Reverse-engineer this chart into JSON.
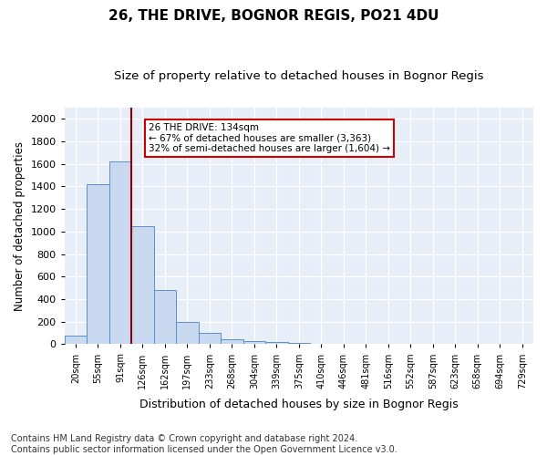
{
  "title1": "26, THE DRIVE, BOGNOR REGIS, PO21 4DU",
  "title2": "Size of property relative to detached houses in Bognor Regis",
  "xlabel": "Distribution of detached houses by size in Bognor Regis",
  "ylabel": "Number of detached properties",
  "categories": [
    "20sqm",
    "55sqm",
    "91sqm",
    "126sqm",
    "162sqm",
    "197sqm",
    "233sqm",
    "268sqm",
    "304sqm",
    "339sqm",
    "375sqm",
    "410sqm",
    "446sqm",
    "481sqm",
    "516sqm",
    "552sqm",
    "587sqm",
    "623sqm",
    "658sqm",
    "694sqm",
    "729sqm"
  ],
  "values": [
    75,
    1420,
    1620,
    1050,
    480,
    200,
    100,
    45,
    25,
    18,
    15,
    0,
    0,
    0,
    0,
    0,
    0,
    0,
    0,
    0,
    0
  ],
  "bar_color": "#c8d8ee",
  "bar_edge_color": "#5b8fc9",
  "vline_color": "#8b0000",
  "annotation_text": "26 THE DRIVE: 134sqm\n← 67% of detached houses are smaller (3,363)\n32% of semi-detached houses are larger (1,604) →",
  "annotation_box_color": "white",
  "annotation_box_edge_color": "#cc0000",
  "ylim": [
    0,
    2100
  ],
  "yticks": [
    0,
    200,
    400,
    600,
    800,
    1000,
    1200,
    1400,
    1600,
    1800,
    2000
  ],
  "bg_color": "#e8eef8",
  "grid_color": "#ffffff",
  "footer": "Contains HM Land Registry data © Crown copyright and database right 2024.\nContains public sector information licensed under the Open Government Licence v3.0.",
  "title1_fontsize": 11,
  "title2_fontsize": 9.5,
  "xlabel_fontsize": 9,
  "ylabel_fontsize": 8.5,
  "footer_fontsize": 7,
  "tick_fontsize": 8,
  "xtick_fontsize": 7
}
